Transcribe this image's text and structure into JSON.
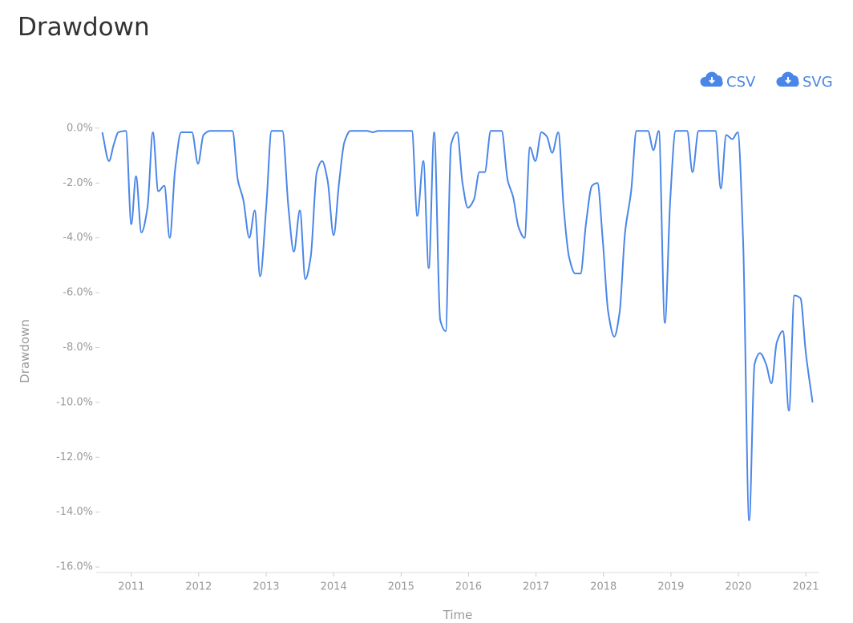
{
  "chart_data": {
    "type": "line",
    "title": "Drawdown",
    "x_label": "Time",
    "y_label": "Drawdown",
    "x": [
      2010.57,
      2010.67,
      2010.74,
      2010.81,
      2010.92,
      2011.0,
      2011.07,
      2011.15,
      2011.24,
      2011.32,
      2011.4,
      2011.49,
      2011.57,
      2011.65,
      2011.74,
      2011.9,
      2011.99,
      2012.07,
      2012.17,
      2012.5,
      2012.58,
      2012.66,
      2012.75,
      2012.83,
      2012.91,
      2013.0,
      2013.08,
      2013.24,
      2013.33,
      2013.41,
      2013.5,
      2013.58,
      2013.66,
      2013.75,
      2013.83,
      2013.91,
      2014.0,
      2014.08,
      2014.16,
      2014.25,
      2014.5,
      2014.58,
      2014.66,
      2015.16,
      2015.24,
      2015.33,
      2015.41,
      2015.49,
      2015.58,
      2015.66,
      2015.74,
      2015.83,
      2015.91,
      2015.99,
      2016.08,
      2016.16,
      2016.24,
      2016.33,
      2016.49,
      2016.58,
      2016.66,
      2016.74,
      2016.83,
      2016.91,
      2016.99,
      2017.08,
      2017.16,
      2017.24,
      2017.33,
      2017.41,
      2017.49,
      2017.58,
      2017.66,
      2017.74,
      2017.83,
      2017.91,
      2017.99,
      2018.07,
      2018.16,
      2018.24,
      2018.32,
      2018.41,
      2018.49,
      2018.66,
      2018.74,
      2018.82,
      2018.91,
      2018.99,
      2019.07,
      2019.24,
      2019.32,
      2019.41,
      2019.66,
      2019.74,
      2019.82,
      2019.91,
      2019.99,
      2020.07,
      2020.16,
      2020.24,
      2020.32,
      2020.41,
      2020.49,
      2020.57,
      2020.66,
      2020.75,
      2020.83,
      2020.92,
      2021.0,
      2021.1
    ],
    "series": [
      {
        "name": "Drawdown",
        "color": "#4a86e8",
        "values": [
          -0.15,
          -1.2,
          -0.6,
          -0.15,
          -0.1,
          -3.5,
          -1.75,
          -3.8,
          -2.9,
          -0.15,
          -2.3,
          -2.1,
          -4.0,
          -1.5,
          -0.15,
          -0.15,
          -1.3,
          -0.25,
          -0.1,
          -0.1,
          -1.9,
          -2.6,
          -4.0,
          -3.0,
          -5.4,
          -2.9,
          -0.1,
          -0.1,
          -2.9,
          -4.5,
          -3.0,
          -5.5,
          -4.7,
          -1.6,
          -1.2,
          -1.9,
          -3.9,
          -2.0,
          -0.5,
          -0.1,
          -0.1,
          -0.15,
          -0.1,
          -0.1,
          -3.2,
          -1.2,
          -5.1,
          -0.15,
          -7.0,
          -7.4,
          -0.6,
          -0.15,
          -2.0,
          -2.9,
          -2.6,
          -1.6,
          -1.6,
          -0.1,
          -0.1,
          -1.9,
          -2.5,
          -3.6,
          -4.0,
          -0.7,
          -1.2,
          -0.15,
          -0.3,
          -0.9,
          -0.15,
          -2.9,
          -4.7,
          -5.3,
          -5.3,
          -3.5,
          -2.1,
          -2.0,
          -4.1,
          -6.7,
          -7.6,
          -6.7,
          -3.8,
          -2.3,
          -0.1,
          -0.1,
          -0.8,
          -0.1,
          -7.1,
          -2.6,
          -0.1,
          -0.1,
          -1.6,
          -0.1,
          -0.1,
          -2.2,
          -0.25,
          -0.4,
          -0.15,
          -4.1,
          -14.3,
          -8.6,
          -8.2,
          -8.6,
          -9.3,
          -7.8,
          -7.4,
          -10.3,
          -6.1,
          -6.2,
          -8.2,
          -10.0
        ]
      }
    ],
    "xlim": [
      2010.48,
      2021.2
    ],
    "xticks": [
      2011,
      2012,
      2013,
      2014,
      2015,
      2016,
      2017,
      2018,
      2019,
      2020,
      2021
    ],
    "ylim": [
      -16.2,
      0.2
    ],
    "yticks": [
      {
        "value": 0,
        "label": "0.0%"
      },
      {
        "value": -2,
        "label": "-2.0%"
      },
      {
        "value": -4,
        "label": "-4.0%"
      },
      {
        "value": -6,
        "label": "-6.0%"
      },
      {
        "value": -8,
        "label": "-8.0%"
      },
      {
        "value": -10,
        "label": "-10.0%"
      },
      {
        "value": -12,
        "label": "-12.0%"
      },
      {
        "value": -14,
        "label": "-14.0%"
      },
      {
        "value": -16,
        "label": "-16.0%"
      }
    ],
    "grid": false
  },
  "toolbar": {
    "csv": "CSV",
    "svg": "SVG"
  }
}
